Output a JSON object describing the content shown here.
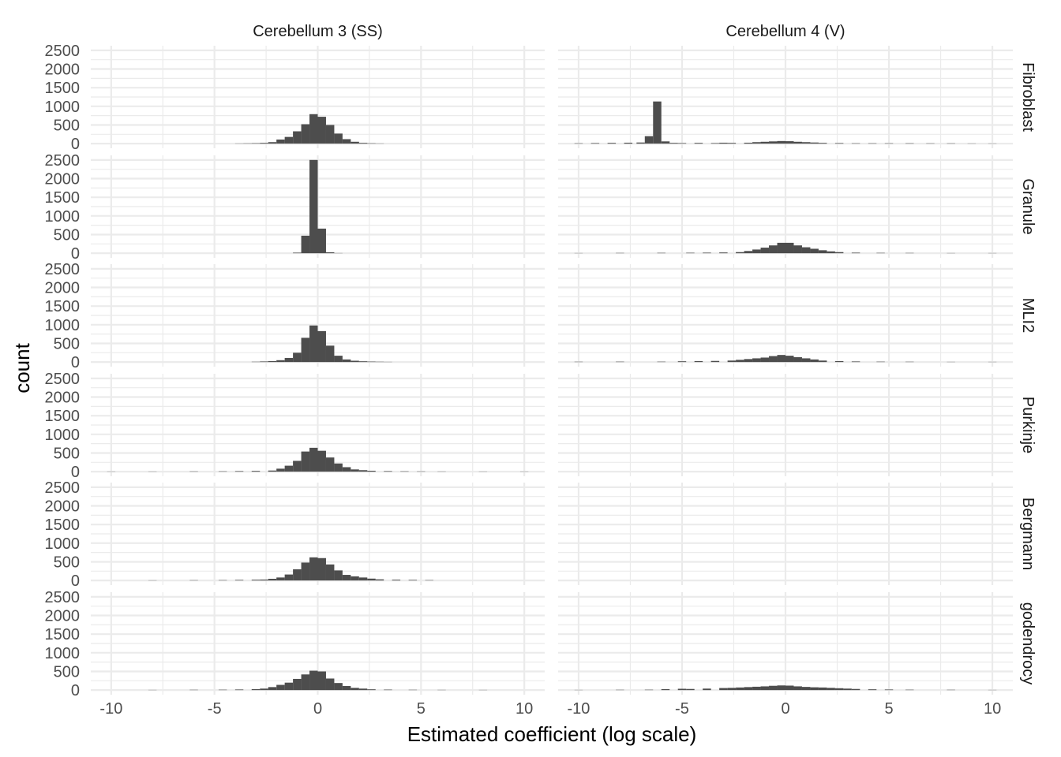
{
  "chart_data": {
    "type": "bar",
    "subtype": "faceted-histogram",
    "xlabel": "Estimated coefficient (log scale)",
    "ylabel": "count",
    "xlim": [
      -10,
      10
    ],
    "ylim": [
      0,
      2500
    ],
    "xticks": [
      "-10",
      "-5",
      "0",
      "5",
      "10"
    ],
    "xtick_values": [
      -10,
      -5,
      0,
      5,
      10
    ],
    "yticks": [
      "0",
      "500",
      "1000",
      "1500",
      "2000",
      "2500"
    ],
    "ytick_values": [
      0,
      500,
      1000,
      1500,
      2000,
      2500
    ],
    "bin_width": 0.4,
    "bar_color": "#4d4d4d",
    "grid": true,
    "column_labels": [
      "Cerebellum 3 (SS)",
      "Cerebellum 4 (V)"
    ],
    "row_labels": [
      "Fibroblast",
      "Granule",
      "MLI2",
      "Purkinje",
      "Bergmann",
      "godendrocy"
    ],
    "panels": [
      {
        "column": "Cerebellum 3 (SS)",
        "row": "Fibroblast",
        "bin_centers": [
          -3.8,
          -3.4,
          -3.0,
          -2.6,
          -2.2,
          -1.8,
          -1.4,
          -1.0,
          -0.6,
          -0.2,
          0.2,
          0.6,
          1.0,
          1.4,
          1.8,
          2.2,
          2.6,
          3.0
        ],
        "counts": [
          5,
          8,
          12,
          20,
          40,
          110,
          180,
          330,
          520,
          790,
          720,
          500,
          270,
          120,
          50,
          20,
          10,
          5
        ]
      },
      {
        "column": "Cerebellum 4 (V)",
        "row": "Fibroblast",
        "bin_centers": [
          -10.0,
          -9.2,
          -8.4,
          -7.6,
          -7.0,
          -6.6,
          -6.2,
          -5.8,
          -5.4,
          -5.0,
          -4.2,
          -3.4,
          -3.0,
          -2.6,
          -1.8,
          -1.4,
          -1.0,
          -0.6,
          -0.2,
          0.2,
          0.6,
          1.0,
          1.4,
          1.8,
          2.6,
          3.4,
          4.2,
          5.0,
          6.0,
          7.0,
          8.0,
          9.0,
          10.0
        ],
        "counts": [
          10,
          15,
          20,
          25,
          30,
          200,
          1130,
          60,
          20,
          15,
          20,
          15,
          25,
          20,
          25,
          40,
          50,
          60,
          70,
          65,
          50,
          40,
          30,
          20,
          15,
          10,
          10,
          10,
          10,
          8,
          8,
          5,
          5
        ]
      },
      {
        "column": "Cerebellum 3 (SS)",
        "row": "Granule",
        "bin_centers": [
          -1.0,
          -0.6,
          -0.2,
          0.2,
          0.6,
          1.0
        ],
        "counts": [
          15,
          470,
          2500,
          660,
          25,
          5
        ]
      },
      {
        "column": "Cerebellum 4 (V)",
        "row": "Granule",
        "bin_centers": [
          -10.0,
          -8.0,
          -6.0,
          -4.6,
          -3.8,
          -3.0,
          -2.2,
          -1.8,
          -1.4,
          -1.0,
          -0.6,
          -0.2,
          0.2,
          0.6,
          1.0,
          1.4,
          1.8,
          2.2,
          2.6,
          3.4,
          4.6,
          6.0,
          8.0,
          10.0
        ],
        "counts": [
          5,
          8,
          10,
          12,
          15,
          20,
          30,
          60,
          100,
          150,
          210,
          280,
          280,
          210,
          160,
          120,
          80,
          50,
          30,
          15,
          10,
          8,
          5,
          5
        ]
      },
      {
        "column": "Cerebellum 3 (SS)",
        "row": "MLI2",
        "bin_centers": [
          -3.0,
          -2.6,
          -2.2,
          -1.8,
          -1.4,
          -1.0,
          -0.6,
          -0.2,
          0.2,
          0.6,
          1.0,
          1.4,
          1.8,
          2.2,
          2.6,
          3.0,
          3.4
        ],
        "counts": [
          8,
          15,
          25,
          50,
          110,
          250,
          650,
          980,
          830,
          440,
          170,
          70,
          35,
          20,
          12,
          8,
          5
        ]
      },
      {
        "column": "Cerebellum 4 (V)",
        "row": "MLI2",
        "bin_centers": [
          -10.0,
          -8.0,
          -6.0,
          -5.0,
          -4.2,
          -3.4,
          -2.6,
          -2.2,
          -1.8,
          -1.4,
          -1.0,
          -0.6,
          -0.2,
          0.2,
          0.6,
          1.0,
          1.4,
          1.8,
          2.6,
          3.4,
          4.6,
          6.0,
          8.0,
          10.0
        ],
        "counts": [
          8,
          10,
          10,
          20,
          25,
          30,
          40,
          60,
          80,
          100,
          120,
          160,
          190,
          170,
          130,
          100,
          70,
          40,
          25,
          15,
          10,
          8,
          5,
          5
        ]
      },
      {
        "column": "Cerebellum 3 (SS)",
        "row": "Purkinje",
        "bin_centers": [
          -10.0,
          -8.0,
          -6.0,
          -4.6,
          -3.8,
          -3.0,
          -2.2,
          -1.8,
          -1.4,
          -1.0,
          -0.6,
          -0.2,
          0.2,
          0.6,
          1.0,
          1.4,
          1.8,
          2.2,
          2.6,
          3.4,
          4.2,
          5.0,
          6.0,
          8.0,
          10.0
        ],
        "counts": [
          5,
          5,
          8,
          10,
          15,
          20,
          30,
          80,
          160,
          290,
          540,
          640,
          560,
          380,
          220,
          120,
          60,
          40,
          25,
          15,
          10,
          8,
          6,
          5,
          5
        ]
      },
      {
        "column": "Cerebellum 4 (V)",
        "row": "Purkinje",
        "bin_centers": [],
        "counts": []
      },
      {
        "column": "Cerebellum 3 (SS)",
        "row": "Bergmann",
        "bin_centers": [
          -8.0,
          -6.0,
          -4.6,
          -3.8,
          -3.0,
          -2.6,
          -2.2,
          -1.8,
          -1.4,
          -1.0,
          -0.6,
          -0.2,
          0.2,
          0.6,
          1.0,
          1.4,
          1.8,
          2.2,
          2.6,
          3.0,
          3.8,
          4.6,
          5.4
        ],
        "counts": [
          5,
          8,
          10,
          15,
          20,
          25,
          45,
          80,
          160,
          300,
          480,
          620,
          600,
          430,
          270,
          150,
          110,
          80,
          50,
          30,
          20,
          15,
          10
        ]
      },
      {
        "column": "Cerebellum 4 (V)",
        "row": "Bergmann",
        "bin_centers": [],
        "counts": []
      },
      {
        "column": "Cerebellum 3 (SS)",
        "row": "godendrocy",
        "bin_centers": [
          -8.0,
          -6.0,
          -4.6,
          -3.8,
          -3.0,
          -2.6,
          -2.2,
          -1.8,
          -1.4,
          -1.0,
          -0.6,
          -0.2,
          0.2,
          0.6,
          1.0,
          1.4,
          1.8,
          2.2,
          2.6,
          3.4,
          4.6,
          6.0,
          8.0
        ],
        "counts": [
          5,
          8,
          10,
          15,
          25,
          40,
          80,
          140,
          200,
          300,
          420,
          520,
          500,
          310,
          190,
          110,
          60,
          40,
          20,
          12,
          8,
          6,
          5
        ]
      },
      {
        "column": "Cerebellum 4 (V)",
        "row": "godendrocy",
        "bin_centers": [
          -10.0,
          -8.0,
          -6.6,
          -5.8,
          -5.0,
          -4.6,
          -3.8,
          -3.0,
          -2.6,
          -2.2,
          -1.8,
          -1.4,
          -1.0,
          -0.6,
          -0.2,
          0.2,
          0.6,
          1.0,
          1.4,
          1.8,
          2.2,
          2.6,
          3.0,
          3.4,
          4.2,
          5.0,
          6.0,
          8.0,
          10.0
        ],
        "counts": [
          5,
          8,
          10,
          25,
          35,
          30,
          40,
          55,
          60,
          70,
          80,
          90,
          100,
          115,
          125,
          120,
          100,
          85,
          75,
          70,
          60,
          50,
          40,
          30,
          20,
          15,
          10,
          8,
          5
        ]
      }
    ]
  }
}
